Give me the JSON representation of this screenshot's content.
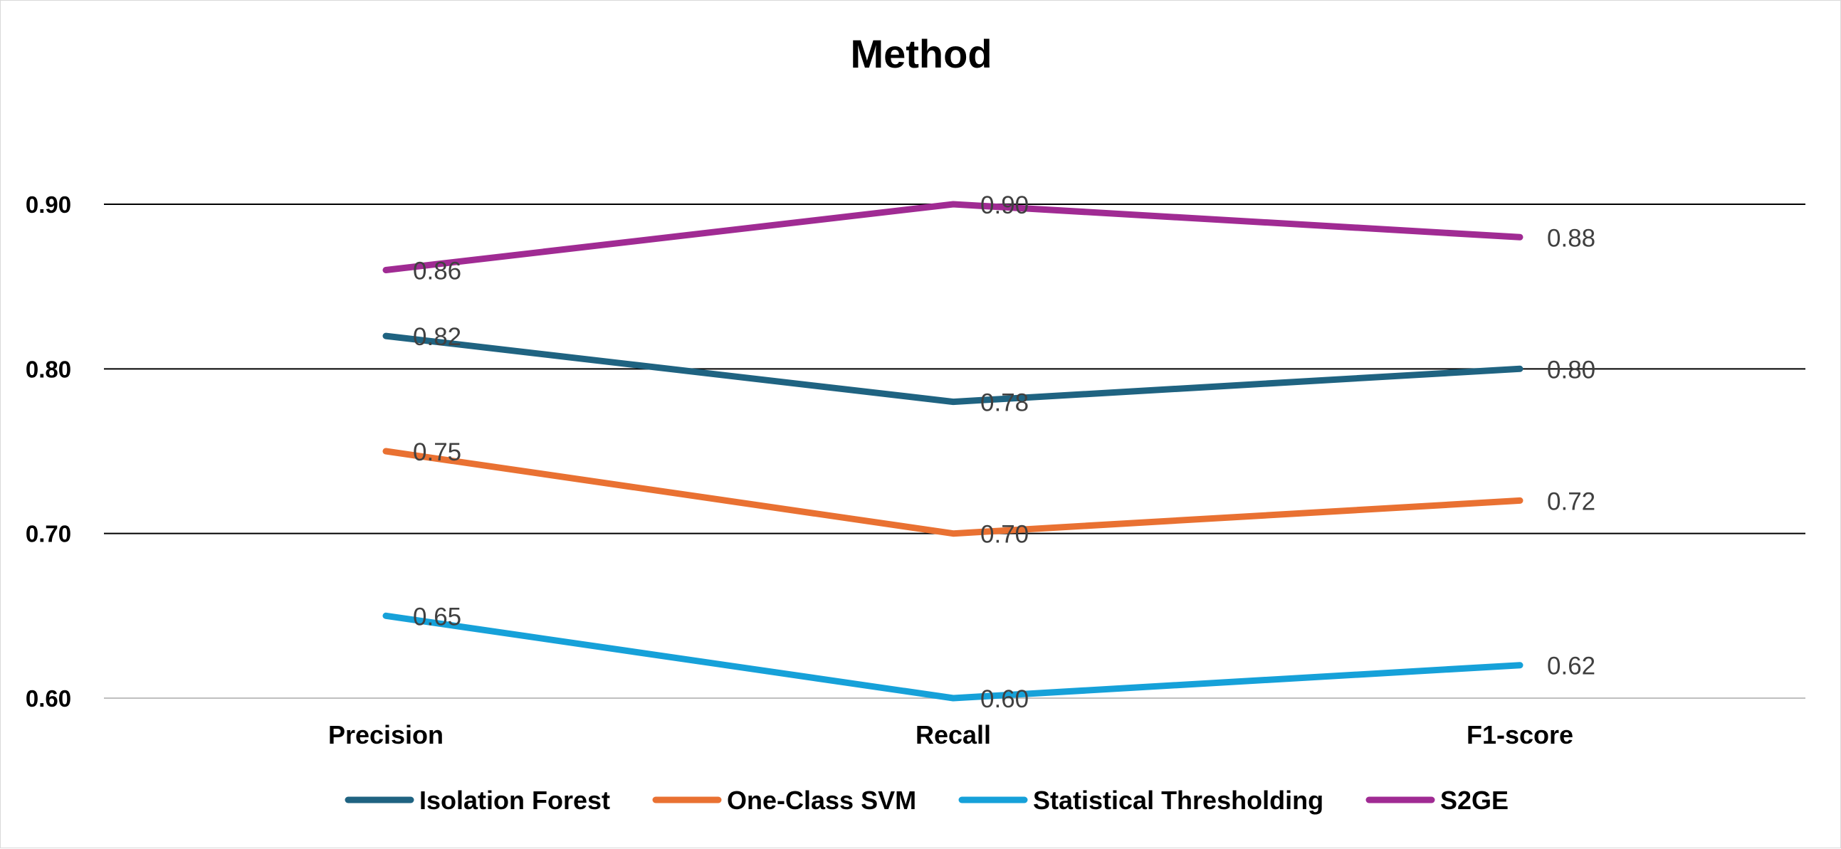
{
  "chart_data": {
    "type": "line",
    "title": "Method",
    "xlabel": "",
    "ylabel": "",
    "categories": [
      "Precision",
      "Recall",
      "F1-score"
    ],
    "ylim": [
      0.6,
      0.9
    ],
    "yticks": [
      "0.60",
      "0.70",
      "0.80",
      "0.90"
    ],
    "grid": true,
    "legend_position": "bottom",
    "series": [
      {
        "name": "Isolation Forest",
        "color": "#1f6381",
        "values": [
          0.82,
          0.78,
          0.8
        ],
        "labels": [
          "0.82",
          "0.78",
          "0.80"
        ]
      },
      {
        "name": "One-Class SVM",
        "color": "#e97132",
        "values": [
          0.75,
          0.7,
          0.72
        ],
        "labels": [
          "0.75",
          "0.70",
          "0.72"
        ]
      },
      {
        "name": "Statistical Thresholding",
        "color": "#16a1d9",
        "values": [
          0.65,
          0.6,
          0.62
        ],
        "labels": [
          "0.65",
          "0.60",
          "0.62"
        ]
      },
      {
        "name": "S2GE",
        "color": "#a02b93",
        "values": [
          0.86,
          0.9,
          0.88
        ],
        "labels": [
          "0.86",
          "0.90",
          "0.88"
        ]
      }
    ]
  }
}
